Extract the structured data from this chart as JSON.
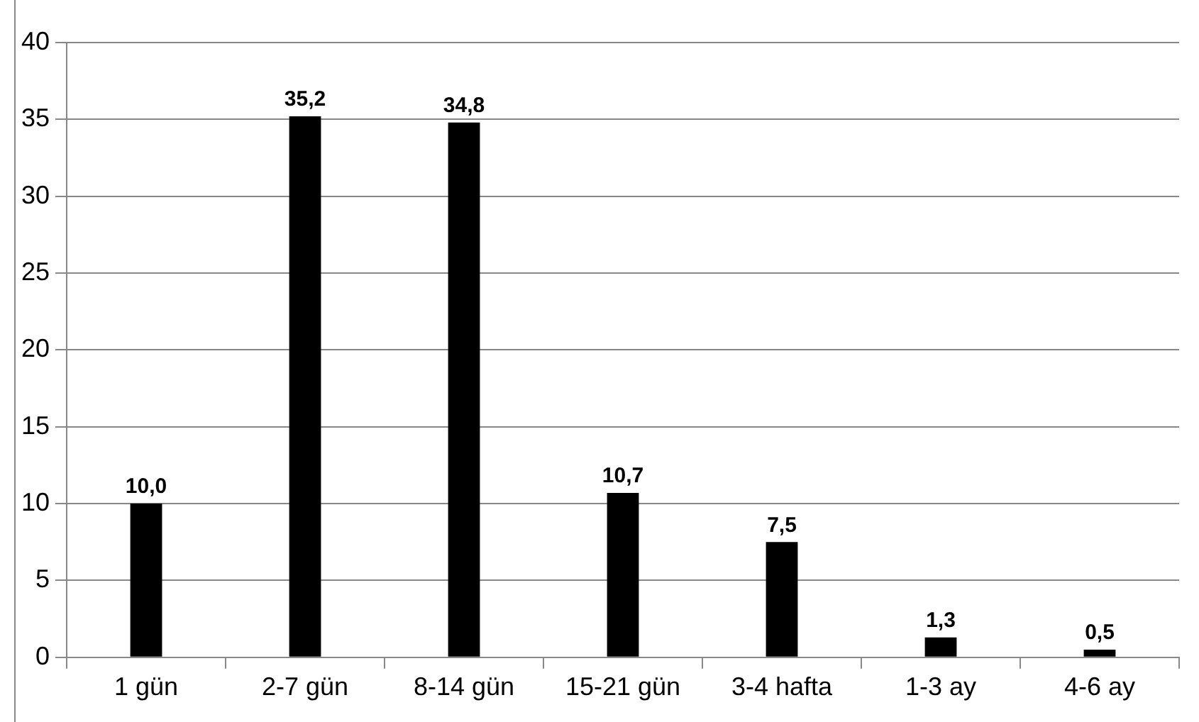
{
  "chart_data": {
    "type": "bar",
    "categories": [
      "1 gün",
      "2-7 gün",
      "8-14 gün",
      "15-21 gün",
      "3-4 hafta",
      "1-3 ay",
      "4-6 ay"
    ],
    "values": [
      10.0,
      35.2,
      34.8,
      10.7,
      7.5,
      1.3,
      0.5
    ],
    "value_labels": [
      "10,0",
      "35,2",
      "34,8",
      "10,7",
      "7,5",
      "1,3",
      "0,5"
    ],
    "color": "#000000",
    "ylim": [
      0,
      40
    ],
    "yticks": [
      0,
      5,
      10,
      15,
      20,
      25,
      30,
      35,
      40
    ],
    "grid": "y",
    "legend": false
  }
}
